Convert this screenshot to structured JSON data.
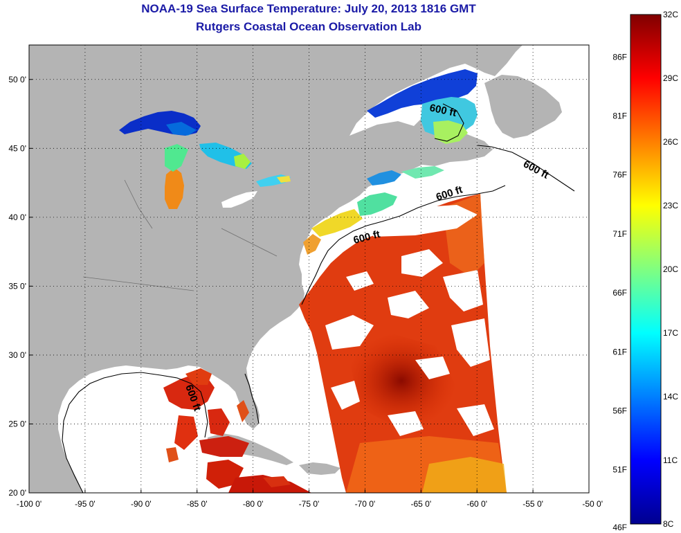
{
  "title": {
    "line1": "NOAA-19 Sea Surface Temperature:  July 20, 2013 1816 GMT",
    "line2": "Rutgers Coastal Ocean Observation Lab"
  },
  "map": {
    "lon_range": [
      -100,
      -50
    ],
    "lat_range": [
      20,
      52.5
    ],
    "x_ticks": [
      {
        "lon": -100,
        "label": "-100 0'"
      },
      {
        "lon": -95,
        "label": "-95 0'"
      },
      {
        "lon": -90,
        "label": "-90 0'"
      },
      {
        "lon": -85,
        "label": "-85 0'"
      },
      {
        "lon": -80,
        "label": "-80 0'"
      },
      {
        "lon": -75,
        "label": "-75 0'"
      },
      {
        "lon": -70,
        "label": "-70 0'"
      },
      {
        "lon": -65,
        "label": "-65 0'"
      },
      {
        "lon": -60,
        "label": "-60 0'"
      },
      {
        "lon": -55,
        "label": "-55 0'"
      },
      {
        "lon": -50,
        "label": "-50 0'"
      }
    ],
    "y_ticks": [
      {
        "lat": 20,
        "label": "20 0'"
      },
      {
        "lat": 25,
        "label": "25 0'"
      },
      {
        "lat": 30,
        "label": "30 0'"
      },
      {
        "lat": 35,
        "label": "35 0'"
      },
      {
        "lat": 40,
        "label": "40 0'"
      },
      {
        "lat": 45,
        "label": "45 0'"
      },
      {
        "lat": 50,
        "label": "50 0'"
      }
    ],
    "grid": "dotted",
    "land_color": "#b4b4b4",
    "contour_label": "600 ft"
  },
  "colorbar": {
    "range_c": [
      8,
      32
    ],
    "celsius_labels": [
      "32C",
      "29C",
      "26C",
      "23C",
      "20C",
      "17C",
      "14C",
      "11C",
      "8C"
    ],
    "fahrenheit_labels": [
      "86F",
      "81F",
      "76F",
      "71F",
      "66F",
      "61F",
      "56F",
      "51F",
      "46F"
    ],
    "colormap": "jet"
  }
}
